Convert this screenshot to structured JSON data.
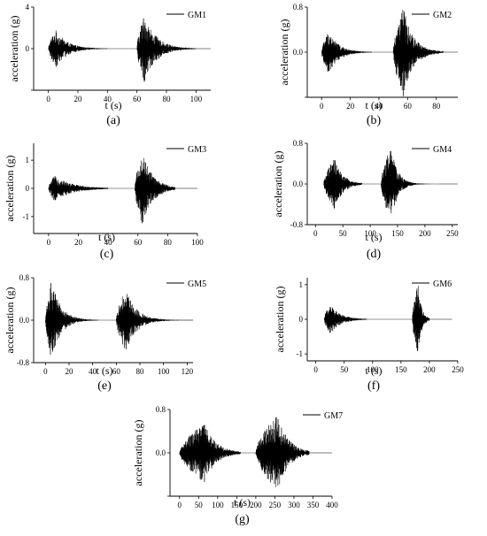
{
  "chart_data": [
    {
      "type": "line",
      "panel_label": "(a)",
      "series": [
        {
          "name": "GM1",
          "events": [
            {
              "t0": 0,
              "t1": 40,
              "peak_t": 5,
              "amp": 1.8,
              "decay": 8
            },
            {
              "t0": 60,
              "t1": 100,
              "peak_t": 65,
              "amp": 3.3,
              "decay": 8
            }
          ]
        }
      ],
      "xlabel": "t (s)",
      "ylabel": "acceleration (g)",
      "xlim": [
        -10,
        110
      ],
      "ylim": [
        -4,
        4
      ],
      "xticks": [
        0,
        20,
        40,
        60,
        80,
        100
      ],
      "yticks": [
        -4,
        0,
        4
      ],
      "xtick_labels": [
        "0",
        "20",
        "40",
        "60",
        "80",
        "100"
      ],
      "ytick_labels": [
        "",
        "0",
        "4"
      ],
      "legend": "top-right",
      "grid": false
    },
    {
      "type": "line",
      "panel_label": "(b)",
      "series": [
        {
          "name": "GM2",
          "events": [
            {
              "t0": 0,
              "t1": 35,
              "peak_t": 5,
              "amp": 0.38,
              "decay": 7
            },
            {
              "t0": 50,
              "t1": 85,
              "peak_t": 57,
              "amp": 0.8,
              "decay": 7
            }
          ]
        }
      ],
      "xlabel": "t (s)",
      "ylabel": "acceleration (g)",
      "xlim": [
        -10,
        95
      ],
      "ylim": [
        -0.8,
        0.8
      ],
      "xticks": [
        0,
        20,
        40,
        60,
        80
      ],
      "yticks": [
        -0.8,
        0,
        0.8
      ],
      "xtick_labels": [
        "0",
        "20",
        "40",
        "60",
        "80"
      ],
      "ytick_labels": [
        "",
        "0.0",
        "0.8"
      ],
      "legend": "top-right",
      "grid": false
    },
    {
      "type": "line",
      "panel_label": "(c)",
      "series": [
        {
          "name": "GM3",
          "events": [
            {
              "t0": 0,
              "t1": 40,
              "peak_t": 4,
              "amp": 0.45,
              "decay": 12
            },
            {
              "t0": 58,
              "t1": 85,
              "peak_t": 63,
              "amp": 1.3,
              "decay": 7
            }
          ]
        }
      ],
      "xlabel": "t (s)",
      "ylabel": "acceleration (g)",
      "xlim": [
        -10,
        100
      ],
      "ylim": [
        -1.6,
        1.6
      ],
      "xticks": [
        0,
        20,
        40,
        60,
        80,
        100
      ],
      "yticks": [
        -1,
        0,
        1
      ],
      "xtick_labels": [
        "0",
        "20",
        "40",
        "60",
        "80",
        "100"
      ],
      "ytick_labels": [
        "-1",
        "0",
        "1"
      ],
      "legend": "top-right",
      "grid": false
    },
    {
      "type": "line",
      "panel_label": "(d)",
      "series": [
        {
          "name": "GM4",
          "events": [
            {
              "t0": 15,
              "t1": 85,
              "peak_t": 35,
              "amp": 0.5,
              "decay": 15
            },
            {
              "t0": 120,
              "t1": 225,
              "peak_t": 138,
              "amp": 0.76,
              "decay": 12
            }
          ]
        }
      ],
      "xlabel": "t (s)",
      "ylabel": "acceleration (g)",
      "xlim": [
        -15,
        260
      ],
      "ylim": [
        -0.8,
        0.8
      ],
      "xticks": [
        0,
        50,
        100,
        150,
        200,
        250
      ],
      "yticks": [
        -0.8,
        0,
        0.8
      ],
      "xtick_labels": [
        "0",
        "50",
        "100",
        "150",
        "200",
        "250"
      ],
      "ytick_labels": [
        "-0.8",
        "0.0",
        "0.8"
      ],
      "legend": "top-right",
      "grid": false
    },
    {
      "type": "line",
      "panel_label": "(e)",
      "series": [
        {
          "name": "GM5",
          "events": [
            {
              "t0": 0,
              "t1": 45,
              "peak_t": 5,
              "amp": 0.75,
              "decay": 8
            },
            {
              "t0": 60,
              "t1": 115,
              "peak_t": 68,
              "amp": 0.6,
              "decay": 9
            }
          ]
        }
      ],
      "xlabel": "t (s)",
      "ylabel": "acceleration (g)",
      "xlim": [
        -10,
        125
      ],
      "ylim": [
        -0.8,
        0.8
      ],
      "xticks": [
        0,
        20,
        40,
        60,
        80,
        100,
        120
      ],
      "yticks": [
        -0.8,
        0,
        0.8
      ],
      "xtick_labels": [
        "0",
        "20",
        "40",
        "60",
        "80",
        "100",
        "120"
      ],
      "ytick_labels": [
        "-0.8",
        "0.0",
        "0.8"
      ],
      "legend": "top-right",
      "grid": false
    },
    {
      "type": "line",
      "panel_label": "(f)",
      "series": [
        {
          "name": "GM6",
          "events": [
            {
              "t0": 15,
              "t1": 90,
              "peak_t": 25,
              "amp": 0.45,
              "decay": 18
            },
            {
              "t0": 170,
              "t1": 200,
              "peak_t": 180,
              "amp": 1.05,
              "decay": 6
            }
          ]
        }
      ],
      "xlabel": "t (s)",
      "ylabel": "acceleration (g)",
      "xlim": [
        -15,
        250
      ],
      "ylim": [
        -1.2,
        1.2
      ],
      "xticks": [
        0,
        50,
        100,
        150,
        200,
        250
      ],
      "yticks": [
        -1,
        0,
        1
      ],
      "xtick_labels": [
        "0",
        "50",
        "100",
        "150",
        "200",
        "250"
      ],
      "ytick_labels": [
        "-1",
        "0",
        "1"
      ],
      "legend": "top-right",
      "grid": false
    },
    {
      "type": "line",
      "panel_label": "(g)",
      "series": [
        {
          "name": "GM7",
          "events": [
            {
              "t0": 0,
              "t1": 160,
              "peak_t": 65,
              "amp": 0.55,
              "decay": 30
            },
            {
              "t0": 200,
              "t1": 340,
              "peak_t": 258,
              "amp": 0.7,
              "decay": 28
            }
          ]
        }
      ],
      "xlabel": "t (s)",
      "ylabel": "acceleration (g)",
      "xlim": [
        -25,
        400
      ],
      "ylim": [
        -0.8,
        0.8
      ],
      "xticks": [
        0,
        50,
        100,
        150,
        200,
        250,
        300,
        350,
        400
      ],
      "yticks": [
        -0.8,
        0,
        0.8
      ],
      "xtick_labels": [
        "0",
        "50",
        "100",
        "150",
        "200",
        "250",
        "300",
        "350",
        "400"
      ],
      "ytick_labels": [
        "",
        "0.0",
        "0.8"
      ],
      "legend": "top-right",
      "grid": false
    }
  ]
}
